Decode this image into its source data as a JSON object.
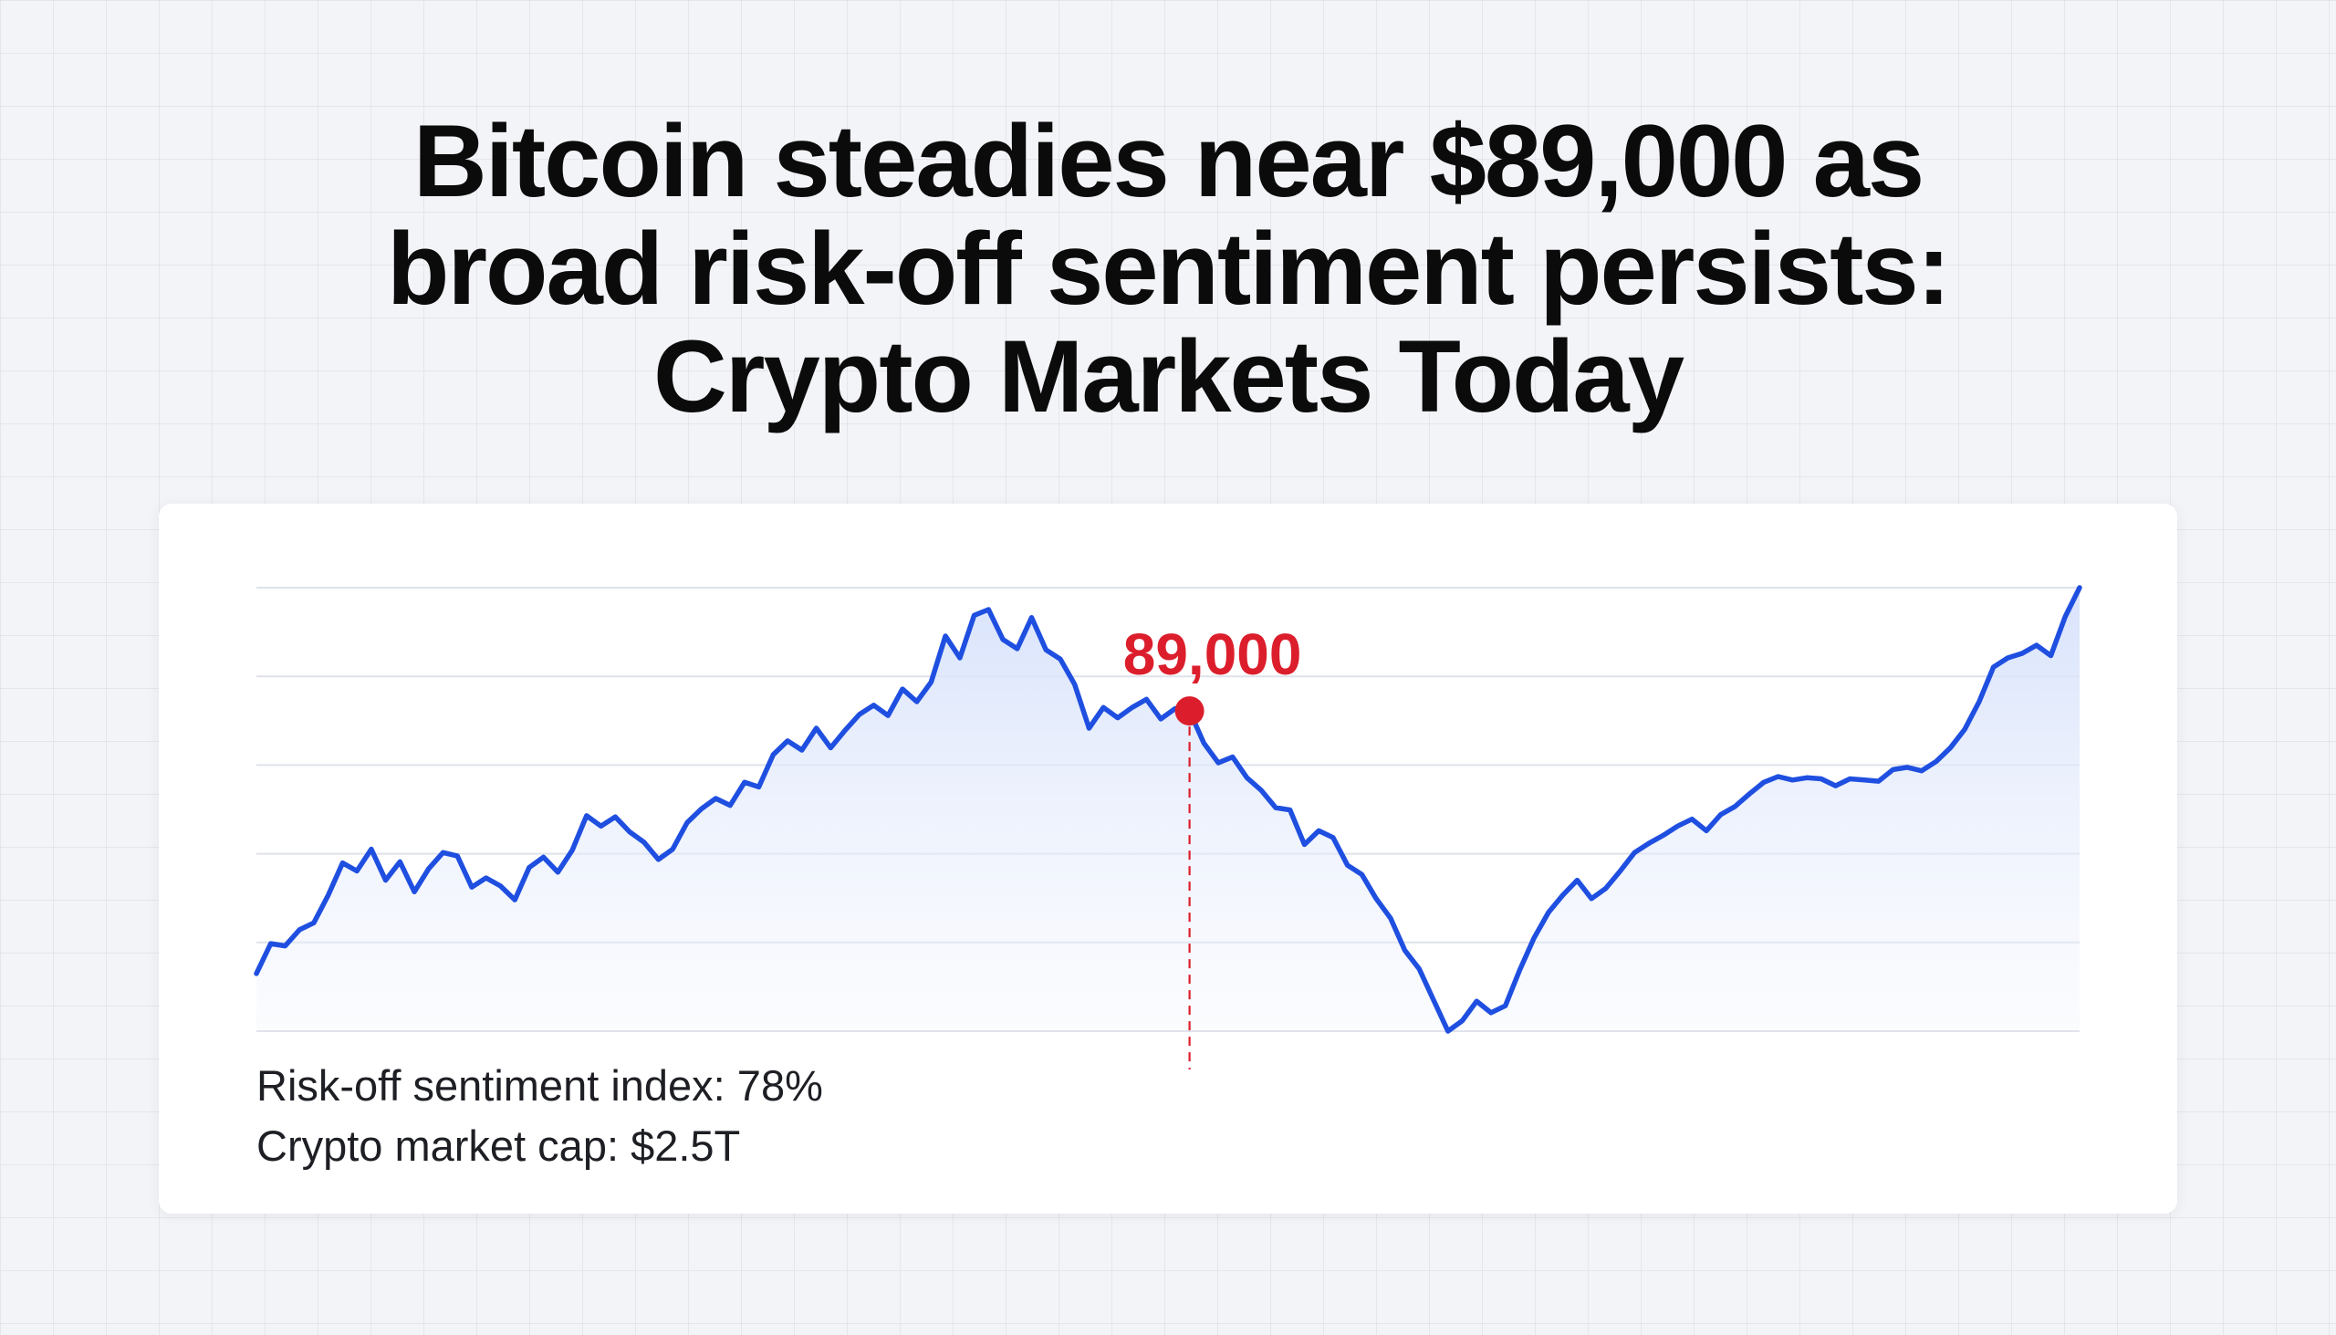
{
  "headline": {
    "line1": "Bitcoin steadies near $89,000 as",
    "line2": "broad risk-off sentiment persists:",
    "line3": "Crypto Markets Today"
  },
  "stats": {
    "risk_off": "Risk-off sentiment index: 78%",
    "market_cap": "Crypto market cap: $2.5T"
  },
  "colors": {
    "line": "#1f4fe0",
    "marker": "#dc1e2c",
    "grid": "#dfe2ea",
    "area": "#dde6fb"
  },
  "chart_data": {
    "type": "line",
    "grid": true,
    "annotation": {
      "label": "89,000",
      "index": 65
    },
    "series": [
      {
        "values": [
          0.0,
          2.6,
          2.4,
          3.8,
          4.4,
          6.8,
          9.6,
          8.9,
          10.8,
          8.1,
          9.7,
          7.1,
          9.1,
          10.5,
          10.2,
          7.5,
          8.3,
          7.6,
          6.4,
          9.2,
          10.1,
          8.8,
          10.7,
          13.7,
          12.8,
          13.6,
          12.3,
          11.4,
          9.9,
          10.8,
          13.1,
          14.3,
          15.2,
          14.6,
          16.6,
          16.2,
          19.0,
          20.2,
          19.4,
          21.3,
          19.6,
          21.1,
          22.5,
          23.3,
          22.4,
          24.7,
          23.6,
          25.3,
          29.3,
          27.4,
          31.1,
          31.6,
          29.0,
          28.2,
          30.9,
          28.1,
          27.3,
          25.1,
          21.3,
          23.1,
          22.2,
          23.1,
          23.8,
          22.1,
          23.0,
          22.8,
          20.0,
          18.3,
          18.8,
          17.0,
          15.9,
          14.4,
          14.2,
          11.2,
          12.4,
          11.8,
          9.4,
          8.6,
          6.5,
          4.8,
          2.0,
          0.4,
          -2.3,
          -5.0,
          -4.1,
          -2.4,
          -3.4,
          -2.8,
          0.3,
          3.1,
          5.3,
          6.8,
          8.1,
          6.5,
          7.4,
          8.9,
          10.5,
          11.3,
          12.0,
          12.8,
          13.4,
          12.4,
          13.8,
          14.5,
          15.6,
          16.6,
          17.1,
          16.8,
          17.0,
          16.9,
          16.3,
          16.9,
          16.8,
          16.7,
          17.7,
          17.9,
          17.6,
          18.4,
          19.6,
          21.2,
          23.6,
          26.6,
          27.4,
          27.8,
          28.5,
          27.6,
          31.0,
          33.5
        ]
      }
    ]
  }
}
